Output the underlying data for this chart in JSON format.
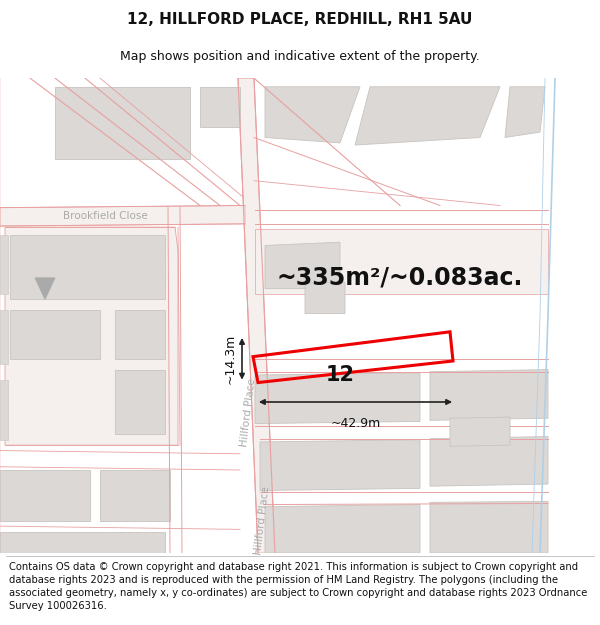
{
  "title": "12, HILLFORD PLACE, REDHILL, RH1 5AU",
  "subtitle": "Map shows position and indicative extent of the property.",
  "area_text": "~335m²/~0.083ac.",
  "width_label": "~42.9m",
  "height_label": "~14.3m",
  "property_number": "12",
  "copyright_text": "Contains OS data © Crown copyright and database right 2021. This information is subject to Crown copyright and database rights 2023 and is reproduced with the permission of HM Land Registry. The polygons (including the associated geometry, namely x, y co-ordinates) are subject to Crown copyright and database rights 2023 Ordnance Survey 100026316.",
  "map_bg": "#f8f6f4",
  "road_color": "#f0c8c8",
  "road_edge": "#e8a0a0",
  "block_color": "#dbd8d5",
  "block_edge": "#c8c4c0",
  "red_outline": "#ee0000",
  "dim_line_color": "#222222",
  "text_color": "#111111",
  "street_label_color": "#aaaaaa",
  "blue_line": "#b0d0e8",
  "title_fontsize": 11,
  "subtitle_fontsize": 9,
  "area_fontsize": 17,
  "label_fontsize": 9,
  "copyright_fontsize": 7.2
}
